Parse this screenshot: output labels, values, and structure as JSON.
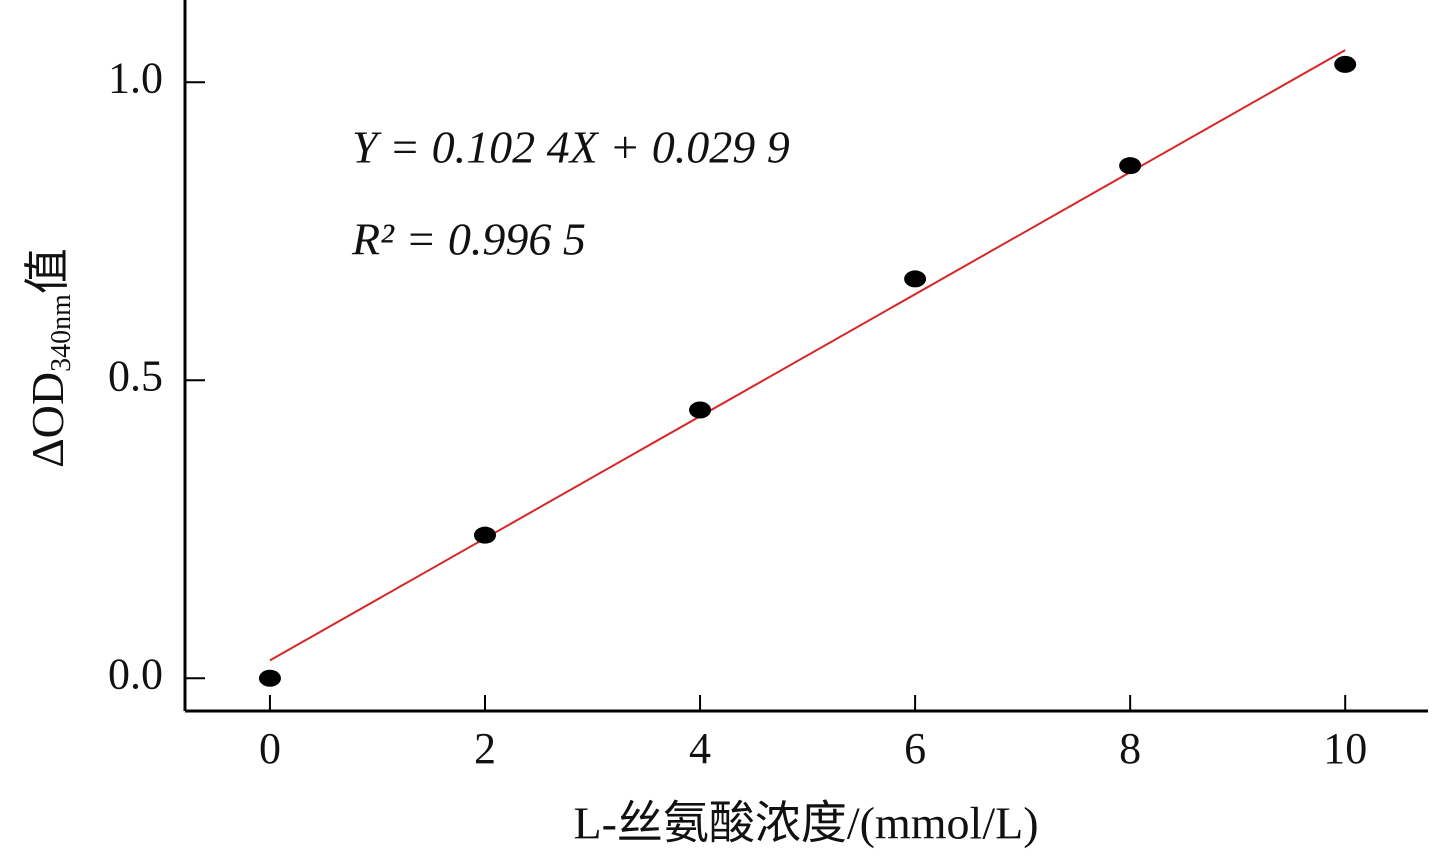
{
  "chart_data": {
    "type": "scatter",
    "x_label": "L-丝氨酸浓度/(mmol/L)",
    "y_label": {
      "main": "ΔOD",
      "sub": "340nm",
      "suffix": "值"
    },
    "annotations": [
      "Y = 0.102 4X + 0.029 9",
      "R² = 0.996 5"
    ],
    "x": [
      0,
      2,
      4,
      6,
      8,
      10
    ],
    "series": [
      {
        "color": "#000000",
        "values": [
          0.0,
          0.24,
          0.45,
          0.67,
          0.86,
          1.03
        ]
      }
    ],
    "fit": {
      "slope": 0.1024,
      "intercept": 0.0299,
      "x": [
        0,
        10
      ],
      "color": "#d62728"
    },
    "xlim": [
      -0.79,
      10.77
    ],
    "ylim": [
      -0.055,
      1.138
    ],
    "xticks": [
      0,
      2,
      4,
      6,
      8,
      10
    ],
    "yticks": [
      {
        "value": 0,
        "label": "0.0"
      },
      {
        "value": 0.5,
        "label": "0.5"
      },
      {
        "value": 1,
        "label": "1.0"
      }
    ],
    "grid": false
  }
}
